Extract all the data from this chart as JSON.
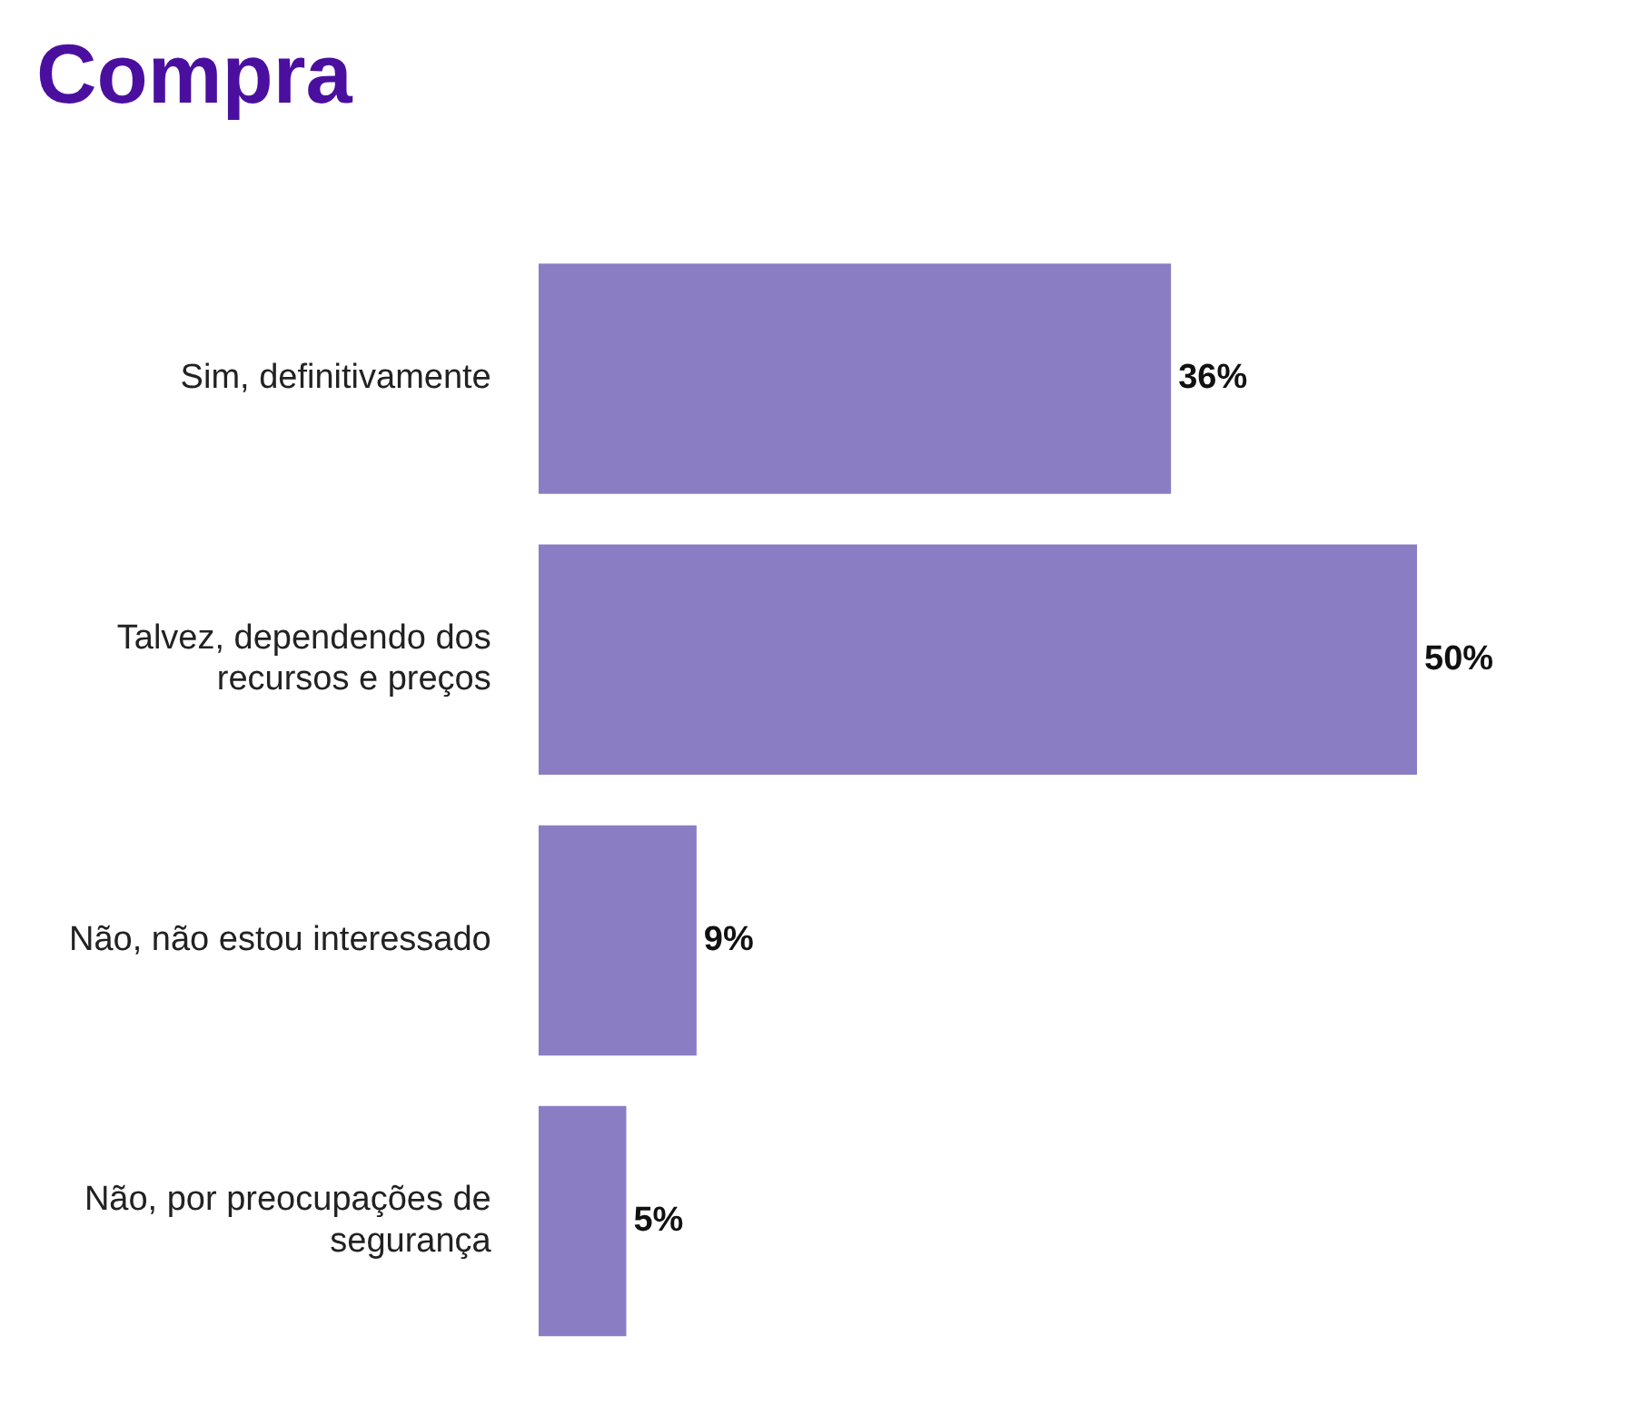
{
  "chart_data": {
    "type": "bar",
    "orientation": "horizontal",
    "title": "Compra",
    "categories": [
      "Sim, definitivamente",
      "Talvez, dependendo dos recursos e preços",
      "Não, não estou interessado",
      "Não, por preocupações de segurança"
    ],
    "values": [
      36,
      50,
      9,
      5
    ],
    "value_labels": [
      "36%",
      "50%",
      "9%",
      "5%"
    ],
    "color": "#8b7dc3"
  }
}
